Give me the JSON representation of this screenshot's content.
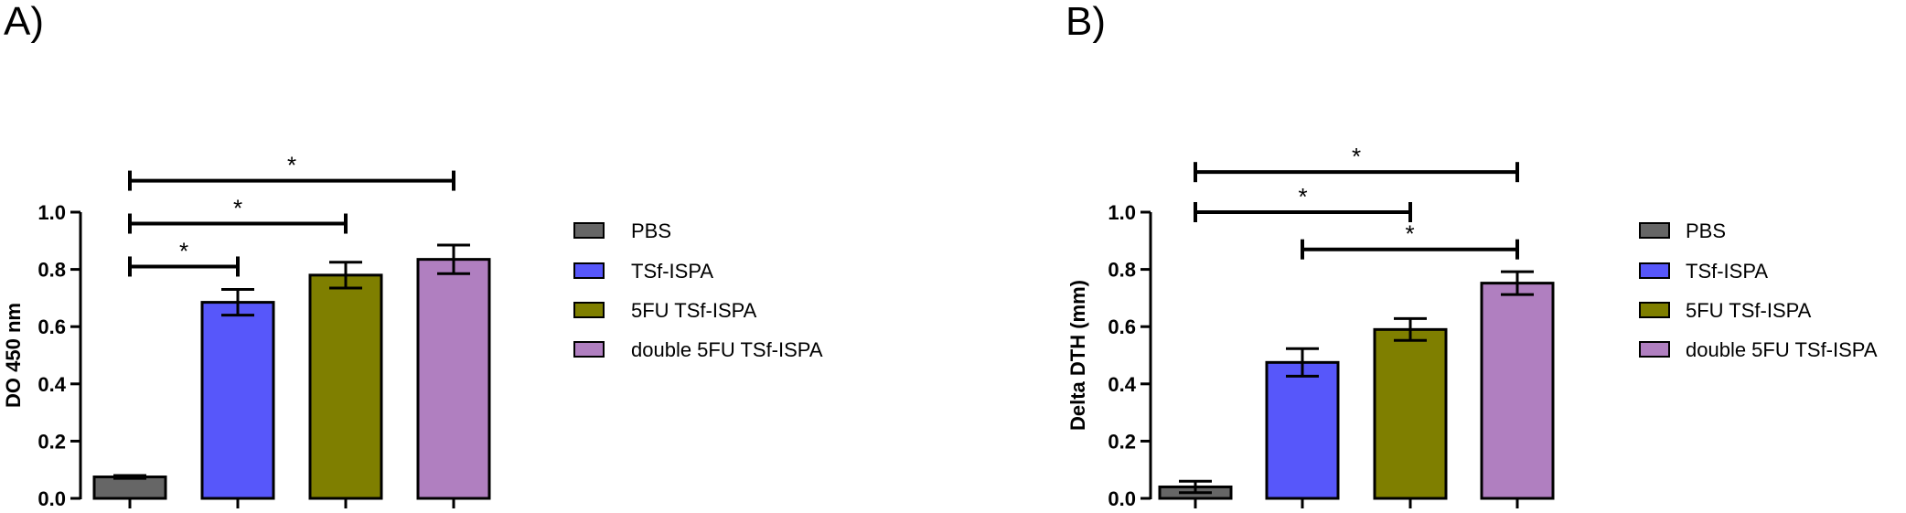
{
  "chart_data": [
    {
      "panel_label": "A)",
      "type": "bar",
      "ylabel": "DO 450 nm",
      "xlabel": "",
      "ylim": [
        0,
        1.0
      ],
      "yticks": [
        "0.0",
        "0.2",
        "0.4",
        "0.6",
        "0.8",
        "1.0"
      ],
      "categories": [
        "PBS",
        "TSf-ISPA",
        "5FU TSf-ISPA",
        "double 5FU TSf-ISPA"
      ],
      "values": [
        0.075,
        0.685,
        0.78,
        0.835
      ],
      "errors": [
        0.005,
        0.045,
        0.045,
        0.05
      ],
      "colors": [
        "#666666",
        "#5757fa",
        "#7f7f00",
        "#b07fc0"
      ],
      "legend_position": "right",
      "significance": [
        {
          "from": 0,
          "to": 1,
          "label": "*",
          "y": 0.81
        },
        {
          "from": 0,
          "to": 2,
          "label": "*",
          "y": 0.96
        },
        {
          "from": 0,
          "to": 3,
          "label": "*",
          "y": 1.11
        }
      ]
    },
    {
      "panel_label": "B)",
      "type": "bar",
      "ylabel": "Delta DTH (mm)",
      "xlabel": "",
      "ylim": [
        0,
        1.0
      ],
      "yticks": [
        "0.0",
        "0.2",
        "0.4",
        "0.6",
        "0.8",
        "1.0"
      ],
      "categories": [
        "PBS",
        "TSf-ISPA",
        "5FU TSf-ISPA",
        "double 5FU TSf-ISPA"
      ],
      "values": [
        0.04,
        0.475,
        0.59,
        0.752
      ],
      "errors": [
        0.02,
        0.048,
        0.038,
        0.04
      ],
      "colors": [
        "#666666",
        "#5757fa",
        "#7f7f00",
        "#b07fc0"
      ],
      "legend_position": "right",
      "significance": [
        {
          "from": 1,
          "to": 3,
          "label": "*",
          "y": 0.87
        },
        {
          "from": 0,
          "to": 2,
          "label": "*",
          "y": 1.0
        },
        {
          "from": 0,
          "to": 3,
          "label": "*",
          "y": 1.14
        }
      ]
    }
  ]
}
